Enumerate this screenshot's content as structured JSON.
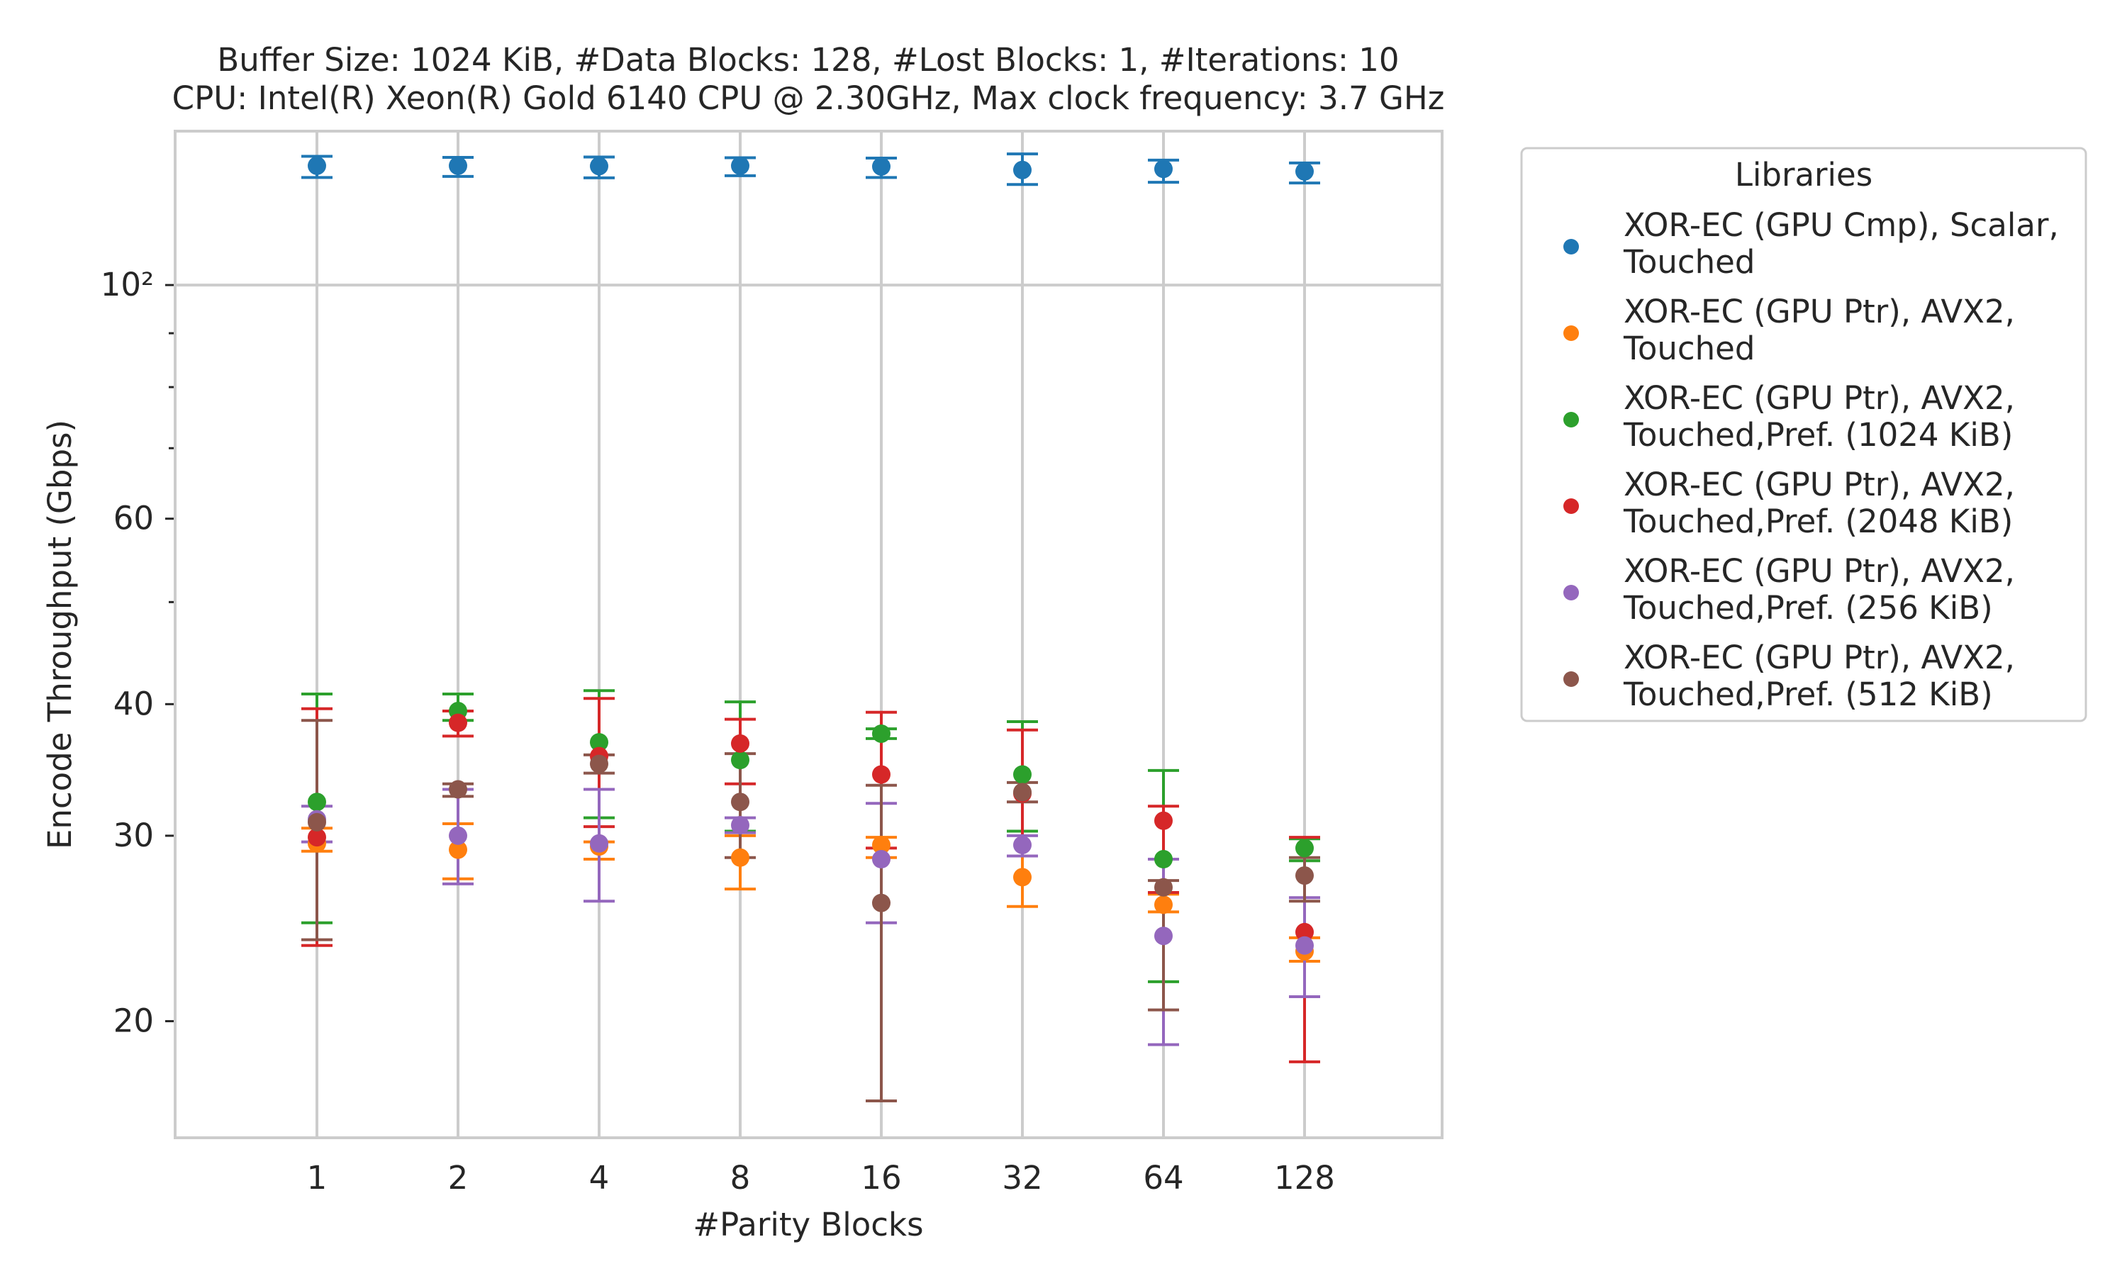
{
  "chart_data": {
    "type": "scatter",
    "title_line1": "Buffer Size: 1024 KiB, #Data Blocks: 128, #Lost Blocks: 1, #Iterations: 10",
    "title_line2": "CPU: Intel(R) Xeon(R) Gold 6140 CPU @ 2.30GHz, Max clock frequency: 3.7 GHz",
    "xlabel": "#Parity Blocks",
    "ylabel": "Encode Throughput (Gbps)",
    "y_scale": "log",
    "ylim": [
      15.5,
      140
    ],
    "categories": [
      "1",
      "2",
      "4",
      "8",
      "16",
      "32",
      "64",
      "128"
    ],
    "y_major_ticks": [
      {
        "value": 20,
        "label": "20"
      },
      {
        "value": 30,
        "label": "30"
      },
      {
        "value": 40,
        "label": "40"
      },
      {
        "value": 60,
        "label": "60"
      },
      {
        "value": 100,
        "label": "10²"
      }
    ],
    "y_minor_ticks": [
      50,
      70,
      80,
      90
    ],
    "grid": true,
    "legend": {
      "title": "Libraries",
      "placement": "outside-right"
    },
    "series": [
      {
        "name": "XOR-EC (GPU Cmp), Scalar, Touched",
        "color": "#1f77b4",
        "values": [
          129.8,
          129.8,
          129.7,
          129.8,
          129.6,
          128.6,
          128.9,
          128.2
        ],
        "err_low": [
          126.5,
          126.8,
          126.4,
          127.0,
          126.5,
          124.6,
          125.2,
          125.0
        ],
        "err_high": [
          132.5,
          132.2,
          132.3,
          132.1,
          132.0,
          133.2,
          131.4,
          130.6
        ]
      },
      {
        "name": "XOR-EC (GPU Ptr), AVX2, Touched",
        "color": "#ff7f0e",
        "values": [
          29.5,
          29.1,
          29.3,
          28.6,
          29.4,
          27.4,
          25.8,
          23.3
        ],
        "err_low": [
          29.0,
          27.3,
          28.5,
          26.7,
          28.6,
          25.7,
          25.4,
          22.8
        ],
        "err_high": [
          30.5,
          30.8,
          29.6,
          30.0,
          29.9,
          28.7,
          26.4,
          24.0
        ]
      },
      {
        "name": "XOR-EC (GPU Ptr), AVX2, Touched,Pref. (1024 KiB)",
        "color": "#2ca02c",
        "values": [
          32.3,
          39.4,
          36.8,
          35.4,
          37.5,
          34.3,
          28.5,
          29.2
        ],
        "err_low": [
          24.8,
          38.6,
          31.2,
          30.3,
          37.1,
          30.3,
          21.8,
          28.4
        ],
        "err_high": [
          40.9,
          40.9,
          41.2,
          40.2,
          37.9,
          38.5,
          34.6,
          29.8
        ]
      },
      {
        "name": "XOR-EC (GPU Ptr), AVX2, Touched,Pref. (2048 KiB)",
        "color": "#d62728",
        "values": [
          29.9,
          38.4,
          35.7,
          36.7,
          34.3,
          32.9,
          31.0,
          24.3
        ],
        "err_low": [
          23.6,
          37.3,
          30.6,
          33.6,
          29.2,
          28.7,
          26.5,
          18.3
        ],
        "err_high": [
          39.6,
          39.4,
          40.5,
          38.7,
          39.3,
          37.8,
          32.0,
          29.9
        ]
      },
      {
        "name": "XOR-EC (GPU Ptr), AVX2, Touched,Pref. (256 KiB)",
        "color": "#9467bd",
        "values": [
          31.1,
          30.0,
          29.5,
          30.7,
          28.5,
          29.4,
          24.1,
          23.6
        ],
        "err_low": [
          29.6,
          27.0,
          26.0,
          30.2,
          24.8,
          28.7,
          19.0,
          21.1
        ],
        "err_high": [
          32.0,
          33.2,
          33.2,
          31.2,
          32.2,
          30.0,
          28.5,
          26.2
        ]
      },
      {
        "name": "XOR-EC (GPU Ptr), AVX2, Touched,Pref. (512 KiB)",
        "color": "#8c564b",
        "values": [
          30.9,
          33.2,
          35.1,
          32.3,
          25.9,
          33.0,
          26.8,
          27.5
        ],
        "err_low": [
          23.9,
          32.7,
          34.4,
          28.6,
          16.8,
          32.3,
          20.5,
          26.0
        ],
        "err_high": [
          38.6,
          33.6,
          35.8,
          35.9,
          33.5,
          33.7,
          27.2,
          28.6
        ]
      }
    ]
  }
}
